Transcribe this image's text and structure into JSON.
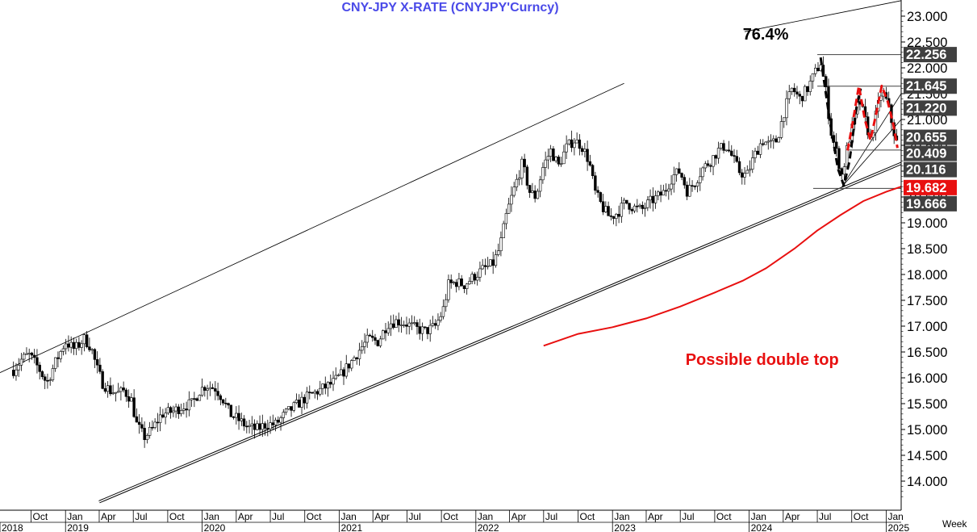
{
  "chart_data": {
    "type": "candlestick",
    "title": "CNY-JPY  X-RATE  (CNYJPY'Curncy)",
    "period_label": "Week",
    "ylim": [
      13.6,
      23.2
    ],
    "y_ticks": [
      14.0,
      14.5,
      15.0,
      15.5,
      16.0,
      16.5,
      17.0,
      17.5,
      18.0,
      18.5,
      19.0,
      19.5,
      20.0,
      20.5,
      21.0,
      21.5,
      22.0,
      22.5,
      23.0
    ],
    "y_tick_labels": [
      "14.000",
      "14.500",
      "15.000",
      "15.500",
      "16.000",
      "16.500",
      "17.000",
      "17.500",
      "18.000",
      "18.500",
      "19.000",
      "19.500",
      "20.000",
      "20.500",
      "21.000",
      "21.500",
      "22.000",
      "22.500",
      "23.000"
    ],
    "xlim": [
      "2018-07-10",
      "2025-02-10"
    ],
    "x_month_ticks": [
      {
        "date": "2018-10-01",
        "label": "Oct"
      },
      {
        "date": "2019-01-01",
        "label": "Jan"
      },
      {
        "date": "2019-04-01",
        "label": "Apr"
      },
      {
        "date": "2019-07-01",
        "label": "Jul"
      },
      {
        "date": "2019-10-01",
        "label": "Oct"
      },
      {
        "date": "2020-01-01",
        "label": "Jan"
      },
      {
        "date": "2020-04-01",
        "label": "Apr"
      },
      {
        "date": "2020-07-01",
        "label": "Jul"
      },
      {
        "date": "2020-10-01",
        "label": "Oct"
      },
      {
        "date": "2021-01-01",
        "label": "Jan"
      },
      {
        "date": "2021-04-01",
        "label": "Apr"
      },
      {
        "date": "2021-07-01",
        "label": "Jul"
      },
      {
        "date": "2021-10-01",
        "label": "Oct"
      },
      {
        "date": "2022-01-01",
        "label": "Jan"
      },
      {
        "date": "2022-04-01",
        "label": "Apr"
      },
      {
        "date": "2022-07-01",
        "label": "Jul"
      },
      {
        "date": "2022-10-01",
        "label": "Oct"
      },
      {
        "date": "2023-01-01",
        "label": "Jan"
      },
      {
        "date": "2023-04-01",
        "label": "Apr"
      },
      {
        "date": "2023-07-01",
        "label": "Jul"
      },
      {
        "date": "2023-10-01",
        "label": "Oct"
      },
      {
        "date": "2024-01-01",
        "label": "Jan"
      },
      {
        "date": "2024-04-01",
        "label": "Apr"
      },
      {
        "date": "2024-07-01",
        "label": "Jul"
      },
      {
        "date": "2024-10-01",
        "label": "Oct"
      },
      {
        "date": "2025-01-01",
        "label": "Jan"
      }
    ],
    "x_year_ticks": [
      {
        "date": "2018-07-10",
        "label": "2018"
      },
      {
        "date": "2019-01-01",
        "label": "2019"
      },
      {
        "date": "2020-01-01",
        "label": "2020"
      },
      {
        "date": "2021-01-01",
        "label": "2021"
      },
      {
        "date": "2022-01-01",
        "label": "2022"
      },
      {
        "date": "2023-01-01",
        "label": "2023"
      },
      {
        "date": "2024-01-01",
        "label": "2024"
      },
      {
        "date": "2025-01-01",
        "label": "2025"
      }
    ],
    "price_path": [
      [
        "2018-08-15",
        16.15
      ],
      [
        "2018-09-05",
        16.35
      ],
      [
        "2018-09-25",
        16.45
      ],
      [
        "2018-10-20",
        16.2
      ],
      [
        "2018-11-12",
        15.9
      ],
      [
        "2018-12-05",
        16.3
      ],
      [
        "2019-01-01",
        16.7
      ],
      [
        "2019-01-25",
        16.55
      ],
      [
        "2019-02-20",
        16.75
      ],
      [
        "2019-03-10",
        16.6
      ],
      [
        "2019-03-25",
        16.2
      ],
      [
        "2019-04-10",
        15.9
      ],
      [
        "2019-04-30",
        15.75
      ],
      [
        "2019-05-25",
        15.7
      ],
      [
        "2019-06-05",
        15.75
      ],
      [
        "2019-06-25",
        15.6
      ],
      [
        "2019-07-10",
        15.1
      ],
      [
        "2019-07-30",
        14.85
      ],
      [
        "2019-08-20",
        15.0
      ],
      [
        "2019-09-15",
        15.3
      ],
      [
        "2019-10-15",
        15.35
      ],
      [
        "2019-11-10",
        15.45
      ],
      [
        "2019-12-05",
        15.5
      ],
      [
        "2019-12-25",
        15.75
      ],
      [
        "2020-01-10",
        15.85
      ],
      [
        "2020-02-05",
        15.8
      ],
      [
        "2020-02-25",
        15.6
      ],
      [
        "2020-03-15",
        15.3
      ],
      [
        "2020-04-05",
        15.2
      ],
      [
        "2020-04-30",
        15.05
      ],
      [
        "2020-05-25",
        15.0
      ],
      [
        "2020-06-20",
        15.1
      ],
      [
        "2020-07-15",
        15.1
      ],
      [
        "2020-08-10",
        15.3
      ],
      [
        "2020-09-05",
        15.45
      ],
      [
        "2020-10-01",
        15.6
      ],
      [
        "2020-10-25",
        15.7
      ],
      [
        "2020-11-20",
        15.8
      ],
      [
        "2020-12-15",
        15.9
      ],
      [
        "2021-01-05",
        16.05
      ],
      [
        "2021-02-01",
        16.3
      ],
      [
        "2021-02-25",
        16.55
      ],
      [
        "2021-03-20",
        16.75
      ],
      [
        "2021-04-15",
        16.7
      ],
      [
        "2021-05-10",
        17.05
      ],
      [
        "2021-06-05",
        17.1
      ],
      [
        "2021-06-30",
        17.05
      ],
      [
        "2021-07-25",
        16.95
      ],
      [
        "2021-08-20",
        16.9
      ],
      [
        "2021-09-15",
        17.0
      ],
      [
        "2021-10-05",
        17.3
      ],
      [
        "2021-10-20",
        17.8
      ],
      [
        "2021-11-10",
        17.85
      ],
      [
        "2021-12-01",
        17.8
      ],
      [
        "2021-12-25",
        17.95
      ],
      [
        "2022-01-20",
        18.1
      ],
      [
        "2022-02-15",
        18.2
      ],
      [
        "2022-03-05",
        18.5
      ],
      [
        "2022-03-25",
        19.2
      ],
      [
        "2022-04-15",
        19.7
      ],
      [
        "2022-05-05",
        20.15
      ],
      [
        "2022-05-25",
        19.6
      ],
      [
        "2022-06-10",
        19.5
      ],
      [
        "2022-06-30",
        20.1
      ],
      [
        "2022-07-20",
        20.4
      ],
      [
        "2022-08-10",
        20.1
      ],
      [
        "2022-08-30",
        20.45
      ],
      [
        "2022-09-20",
        20.6
      ],
      [
        "2022-10-10",
        20.5
      ],
      [
        "2022-10-30",
        20.2
      ],
      [
        "2022-11-15",
        19.6
      ],
      [
        "2022-12-05",
        19.3
      ],
      [
        "2022-12-25",
        19.1
      ],
      [
        "2023-01-15",
        19.2
      ],
      [
        "2023-02-05",
        19.4
      ],
      [
        "2023-02-25",
        19.3
      ],
      [
        "2023-03-20",
        19.25
      ],
      [
        "2023-04-10",
        19.4
      ],
      [
        "2023-05-01",
        19.5
      ],
      [
        "2023-05-20",
        19.6
      ],
      [
        "2023-06-10",
        19.9
      ],
      [
        "2023-06-30",
        20.0
      ],
      [
        "2023-07-20",
        19.6
      ],
      [
        "2023-08-10",
        19.8
      ],
      [
        "2023-08-30",
        20.05
      ],
      [
        "2023-09-20",
        20.2
      ],
      [
        "2023-10-10",
        20.4
      ],
      [
        "2023-10-30",
        20.5
      ],
      [
        "2023-11-15",
        20.3
      ],
      [
        "2023-12-05",
        20.0
      ],
      [
        "2023-12-25",
        19.9
      ],
      [
        "2024-01-15",
        20.3
      ],
      [
        "2024-02-05",
        20.6
      ],
      [
        "2024-02-25",
        20.5
      ],
      [
        "2024-03-15",
        20.6
      ],
      [
        "2024-04-05",
        21.2
      ],
      [
        "2024-04-25",
        21.6
      ],
      [
        "2024-05-15",
        21.4
      ],
      [
        "2024-06-05",
        21.6
      ],
      [
        "2024-06-25",
        21.9
      ],
      [
        "2024-07-10",
        22.1
      ],
      [
        "2024-07-25",
        21.5
      ],
      [
        "2024-08-05",
        20.8
      ],
      [
        "2024-08-20",
        20.4
      ],
      [
        "2024-09-05",
        19.9
      ],
      [
        "2024-09-20",
        20.5
      ],
      [
        "2024-10-05",
        20.9
      ],
      [
        "2024-10-20",
        21.4
      ],
      [
        "2024-11-05",
        21.0
      ],
      [
        "2024-11-20",
        20.6
      ],
      [
        "2024-12-05",
        21.1
      ],
      [
        "2024-12-20",
        21.55
      ],
      [
        "2025-01-05",
        21.3
      ],
      [
        "2025-01-20",
        20.8
      ],
      [
        "2025-01-31",
        20.5
      ]
    ],
    "candle_colors": {
      "up": "#ffffff",
      "down": "#000000",
      "outline": "#000000"
    },
    "moving_average": {
      "color": "#e81010",
      "points": [
        [
          "2022-07-01",
          16.62
        ],
        [
          "2022-10-01",
          16.85
        ],
        [
          "2023-01-01",
          16.98
        ],
        [
          "2023-04-01",
          17.15
        ],
        [
          "2023-07-01",
          17.38
        ],
        [
          "2023-10-01",
          17.65
        ],
        [
          "2023-12-15",
          17.88
        ],
        [
          "2024-02-15",
          18.12
        ],
        [
          "2024-05-01",
          18.5
        ],
        [
          "2024-07-01",
          18.85
        ],
        [
          "2024-09-01",
          19.15
        ],
        [
          "2024-11-01",
          19.42
        ],
        [
          "2025-01-01",
          19.6
        ],
        [
          "2025-02-10",
          19.7
        ]
      ]
    },
    "trend_lines": [
      {
        "name": "upper channel",
        "color": "#000000",
        "points": [
          [
            "2018-07-10",
            16.1
          ],
          [
            "2023-02-01",
            21.7
          ]
        ]
      },
      {
        "name": "upper channel extension",
        "color": "#000000",
        "points": [
          [
            "2023-12-20",
            22.7
          ],
          [
            "2025-02-10",
            23.3
          ]
        ]
      },
      {
        "name": "lower channel",
        "color": "#000000",
        "double": true,
        "points": [
          [
            "2019-04-01",
            13.6
          ],
          [
            "2025-02-10",
            20.15
          ]
        ]
      },
      {
        "name": "fan line",
        "color": "#000000",
        "points": [
          [
            "2024-09-05",
            19.7
          ],
          [
            "2025-02-10",
            21.5
          ]
        ]
      },
      {
        "name": "fan line",
        "color": "#000000",
        "points": [
          [
            "2024-09-05",
            19.7
          ],
          [
            "2025-02-10",
            21.0
          ]
        ]
      }
    ],
    "horizontal_levels": [
      {
        "value": 22.256,
        "from": "2024-07-01",
        "color": "#404040"
      },
      {
        "value": 21.645,
        "from": "2024-07-01",
        "color": "#404040"
      },
      {
        "value": 20.409,
        "from": "2024-09-20",
        "color": "#404040"
      },
      {
        "value": 19.666,
        "from": "2024-06-20",
        "color": "#404040"
      }
    ],
    "level_labels": [
      {
        "value": 22.256,
        "label": "22.256",
        "bg": "#404040"
      },
      {
        "value": 21.645,
        "label": "21.645",
        "bg": "#404040"
      },
      {
        "value": 21.22,
        "label": "21.220",
        "bg": "#404040"
      },
      {
        "value": 20.655,
        "label": "20.655",
        "bg": "#404040"
      },
      {
        "value": 20.409,
        "label": "20.409",
        "bg": "#404040"
      },
      {
        "value": 20.116,
        "label": "20.116",
        "bg": "#404040"
      },
      {
        "value": 19.682,
        "label": "19.682",
        "bg": "#e81010"
      },
      {
        "value": 19.666,
        "label": "19.666",
        "bg": "#404040"
      }
    ],
    "pattern_overlays": [
      {
        "name": "rounded bottom",
        "color": "#000000",
        "points": [
          [
            "2024-07-10",
            22.2
          ],
          [
            "2024-08-05",
            20.9
          ],
          [
            "2024-08-25",
            20.05
          ],
          [
            "2024-09-10",
            19.72
          ],
          [
            "2024-09-25",
            20.2
          ],
          [
            "2024-10-15",
            21.3
          ],
          [
            "2024-10-25",
            21.6
          ]
        ]
      },
      {
        "name": "double top",
        "color": "#e81010",
        "points": [
          [
            "2024-09-20",
            20.4
          ],
          [
            "2024-10-05",
            21.0
          ],
          [
            "2024-10-20",
            21.65
          ],
          [
            "2024-11-05",
            21.0
          ],
          [
            "2024-11-20",
            20.6
          ],
          [
            "2024-12-05",
            21.1
          ],
          [
            "2024-12-20",
            21.65
          ],
          [
            "2025-01-05",
            21.35
          ],
          [
            "2025-01-20",
            20.9
          ],
          [
            "2025-01-31",
            20.45
          ]
        ]
      }
    ],
    "annotations": [
      {
        "text": "76.4%",
        "x": "2023-12-15",
        "y": 22.55,
        "color": "#000000"
      },
      {
        "text": "Possible double top",
        "x": "2023-07-15",
        "y": 16.25,
        "color": "#e81010"
      }
    ],
    "grid": false
  }
}
